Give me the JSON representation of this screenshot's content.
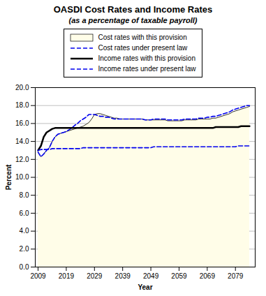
{
  "chart_data": {
    "type": "line",
    "title": "OASDI Cost Rates and Income Rates",
    "subtitle": "(as a percentage of taxable payroll)",
    "x_label": "Year",
    "y_label": "Percent",
    "xlim": [
      2008,
      2086
    ],
    "ylim": [
      0.0,
      20.0
    ],
    "xticks": [
      2009,
      2019,
      2029,
      2039,
      2049,
      2059,
      2069,
      2079
    ],
    "yticks": [
      {
        "value": 0.0,
        "label": "0.0"
      },
      {
        "value": 2.0,
        "label": "2.0"
      },
      {
        "value": 4.0,
        "label": "4.0"
      },
      {
        "value": 6.0,
        "label": "6.0"
      },
      {
        "value": 8.0,
        "label": "8.0"
      },
      {
        "value": 10.0,
        "label": "10.0"
      },
      {
        "value": 12.0,
        "label": "12.0"
      },
      {
        "value": 14.0,
        "label": "14.0"
      },
      {
        "value": 16.0,
        "label": "16.0"
      },
      {
        "value": 18.0,
        "label": "18.0"
      },
      {
        "value": 20.0,
        "label": "20.0"
      }
    ],
    "grid": true,
    "legend": "top",
    "x": [
      2009,
      2010,
      2011,
      2012,
      2013,
      2014,
      2015,
      2016,
      2017,
      2018,
      2019,
      2020,
      2021,
      2022,
      2023,
      2024,
      2025,
      2026,
      2027,
      2028,
      2029,
      2030,
      2031,
      2032,
      2033,
      2034,
      2035,
      2036,
      2037,
      2038,
      2039,
      2040,
      2041,
      2042,
      2043,
      2044,
      2045,
      2046,
      2047,
      2048,
      2049,
      2050,
      2051,
      2052,
      2053,
      2054,
      2055,
      2056,
      2057,
      2058,
      2059,
      2060,
      2061,
      2062,
      2063,
      2064,
      2065,
      2066,
      2067,
      2068,
      2069,
      2070,
      2071,
      2072,
      2073,
      2074,
      2075,
      2076,
      2077,
      2078,
      2079,
      2080,
      2081,
      2082,
      2083,
      2084
    ],
    "series": [
      {
        "name": "Cost rates with this provision",
        "type": "area",
        "color": "#FFFDE8",
        "values": [
          12.8,
          12.3,
          12.6,
          13.0,
          13.3,
          14.0,
          14.5,
          14.8,
          14.9,
          15.0,
          15.1,
          15.2,
          15.3,
          15.4,
          15.5,
          15.6,
          15.7,
          15.9,
          16.1,
          16.5,
          17.0,
          17.1,
          17.1,
          17.0,
          16.9,
          16.8,
          16.7,
          16.6,
          16.6,
          16.5,
          16.5,
          16.5,
          16.5,
          16.5,
          16.5,
          16.5,
          16.5,
          16.5,
          16.4,
          16.4,
          16.4,
          16.4,
          16.4,
          16.4,
          16.4,
          16.4,
          16.3,
          16.3,
          16.3,
          16.3,
          16.3,
          16.3,
          16.4,
          16.4,
          16.4,
          16.4,
          16.4,
          16.5,
          16.5,
          16.5,
          16.5,
          16.5,
          16.6,
          16.6,
          16.7,
          16.8,
          16.9,
          17.0,
          17.1,
          17.3,
          17.4,
          17.5,
          17.6,
          17.7,
          17.8,
          17.9
        ]
      },
      {
        "name": "Cost rates under present law",
        "type": "line",
        "line_style": "dashed",
        "color": "#0000EE",
        "values": [
          12.8,
          12.3,
          12.6,
          13.0,
          13.3,
          14.0,
          14.5,
          14.8,
          14.9,
          15.0,
          15.1,
          15.3,
          15.5,
          15.8,
          16.0,
          16.3,
          16.5,
          16.7,
          17.0,
          17.0,
          17.0,
          16.9,
          16.8,
          16.8,
          16.7,
          16.7,
          16.6,
          16.5,
          16.5,
          16.5,
          16.5,
          16.5,
          16.5,
          16.5,
          16.5,
          16.5,
          16.5,
          16.5,
          16.4,
          16.4,
          16.4,
          16.5,
          16.5,
          16.5,
          16.5,
          16.5,
          16.4,
          16.4,
          16.4,
          16.4,
          16.4,
          16.4,
          16.5,
          16.5,
          16.5,
          16.5,
          16.5,
          16.6,
          16.6,
          16.6,
          16.7,
          16.7,
          16.8,
          16.8,
          16.9,
          17.0,
          17.1,
          17.2,
          17.3,
          17.5,
          17.6,
          17.7,
          17.8,
          17.9,
          18.0,
          18.0
        ]
      },
      {
        "name": "Income rates with this provision",
        "type": "line",
        "line_style": "solid",
        "color": "#000000",
        "values": [
          13.0,
          13.5,
          14.5,
          15.0,
          15.2,
          15.4,
          15.5,
          15.5,
          15.5,
          15.5,
          15.5,
          15.5,
          15.5,
          15.5,
          15.5,
          15.5,
          15.5,
          15.5,
          15.5,
          15.5,
          15.5,
          15.5,
          15.5,
          15.5,
          15.5,
          15.5,
          15.5,
          15.5,
          15.5,
          15.5,
          15.5,
          15.5,
          15.5,
          15.5,
          15.5,
          15.5,
          15.5,
          15.5,
          15.5,
          15.5,
          15.5,
          15.5,
          15.5,
          15.5,
          15.5,
          15.5,
          15.5,
          15.5,
          15.5,
          15.5,
          15.5,
          15.5,
          15.5,
          15.5,
          15.5,
          15.5,
          15.5,
          15.5,
          15.5,
          15.5,
          15.5,
          15.5,
          15.5,
          15.6,
          15.6,
          15.6,
          15.6,
          15.6,
          15.6,
          15.6,
          15.6,
          15.6,
          15.7,
          15.7,
          15.7,
          15.7
        ]
      },
      {
        "name": "Income rates under present law",
        "type": "line",
        "line_style": "dashed",
        "color": "#0000EE",
        "values": [
          13.0,
          13.1,
          13.1,
          13.1,
          13.1,
          13.2,
          13.2,
          13.2,
          13.2,
          13.2,
          13.2,
          13.2,
          13.2,
          13.2,
          13.2,
          13.2,
          13.3,
          13.3,
          13.3,
          13.3,
          13.3,
          13.3,
          13.3,
          13.3,
          13.3,
          13.3,
          13.3,
          13.3,
          13.3,
          13.3,
          13.3,
          13.3,
          13.3,
          13.3,
          13.3,
          13.3,
          13.3,
          13.3,
          13.3,
          13.3,
          13.3,
          13.4,
          13.4,
          13.4,
          13.4,
          13.4,
          13.4,
          13.4,
          13.4,
          13.4,
          13.4,
          13.4,
          13.4,
          13.4,
          13.4,
          13.4,
          13.4,
          13.4,
          13.4,
          13.4,
          13.4,
          13.4,
          13.4,
          13.4,
          13.4,
          13.4,
          13.4,
          13.4,
          13.4,
          13.4,
          13.4,
          13.5,
          13.5,
          13.5,
          13.5,
          13.5
        ]
      }
    ]
  }
}
